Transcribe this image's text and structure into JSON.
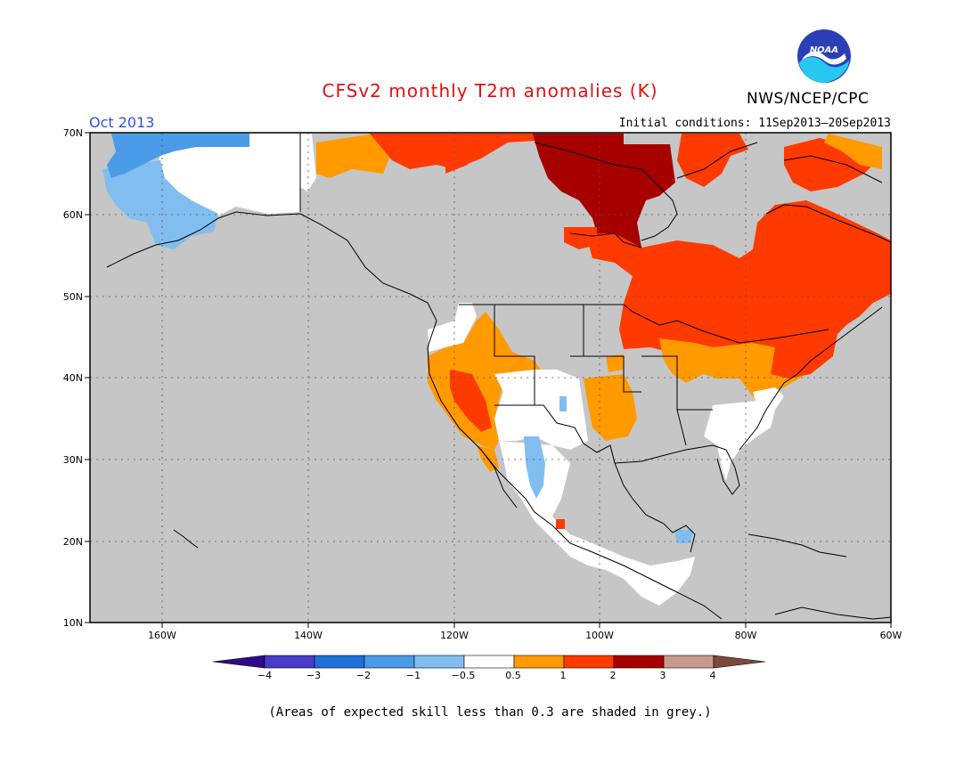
{
  "header": {
    "title": "CFSv2 monthly T2m anomalies (K)",
    "agency": "NWS/NCEP/CPC",
    "month": "Oct 2013",
    "initial_conditions": "Initial conditions: 11Sep2013–20Sep2013",
    "logo_text": "NOAA"
  },
  "map": {
    "lon_ticks": [
      "160W",
      "140W",
      "120W",
      "100W",
      "80W",
      "60W"
    ],
    "lat_ticks": [
      "70N",
      "60N",
      "50N",
      "40N",
      "30N",
      "20N",
      "10N"
    ],
    "background": "#c6c6c6"
  },
  "colorbar": {
    "labels": [
      "−4",
      "−3",
      "−2",
      "−1",
      "−0.5",
      "0.5",
      "1",
      "2",
      "3",
      "4"
    ],
    "colors": [
      "#2d0b8c",
      "#4a3cc8",
      "#1e6fd6",
      "#4a9be8",
      "#82bdf0",
      "#ffffff",
      "#ff9a00",
      "#ff3a00",
      "#a60000",
      "#c89a8c",
      "#7a4a3c"
    ]
  },
  "footnote": "(Areas of expected skill less than 0.3 are shaded in grey.)"
}
